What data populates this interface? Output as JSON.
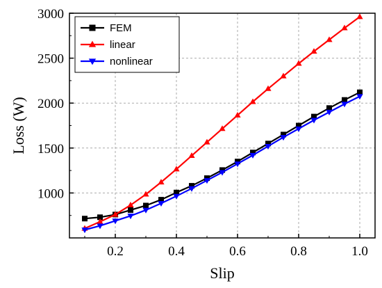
{
  "chart_data": {
    "type": "line",
    "title": "",
    "xlabel": "Slip",
    "ylabel": "Loss (W)",
    "xlim": [
      0.05,
      1.05
    ],
    "ylim": [
      500,
      3000
    ],
    "xticks": [
      0.2,
      0.4,
      0.6,
      0.8,
      1.0
    ],
    "xtick_labels": [
      "0.2",
      "0.4",
      "0.6",
      "0.8",
      "1.0"
    ],
    "yticks": [
      1000,
      1500,
      2000,
      2500,
      3000
    ],
    "ytick_labels": [
      "1000",
      "1500",
      "2000",
      "2500",
      "3000"
    ],
    "grid": true,
    "legend_position": "top-left",
    "x": [
      0.1,
      0.15,
      0.2,
      0.25,
      0.3,
      0.35,
      0.4,
      0.45,
      0.5,
      0.55,
      0.6,
      0.65,
      0.7,
      0.75,
      0.8,
      0.85,
      0.9,
      0.95,
      1.0
    ],
    "series": [
      {
        "name": "FEM",
        "color": "#000000",
        "marker": "square",
        "values": [
          715,
          730,
          760,
          810,
          860,
          925,
          1005,
          1080,
          1165,
          1255,
          1350,
          1450,
          1550,
          1650,
          1750,
          1850,
          1945,
          2035,
          2120
        ]
      },
      {
        "name": "linear",
        "color": "#ff0000",
        "marker": "triangle-up",
        "values": [
          605,
          680,
          760,
          865,
          985,
          1120,
          1265,
          1415,
          1565,
          1715,
          1865,
          2015,
          2160,
          2300,
          2440,
          2575,
          2705,
          2835,
          2960
        ]
      },
      {
        "name": "nonlinear",
        "color": "#0000ff",
        "marker": "triangle-down",
        "values": [
          590,
          635,
          690,
          745,
          810,
          885,
          965,
          1050,
          1140,
          1230,
          1325,
          1420,
          1520,
          1620,
          1715,
          1810,
          1900,
          1990,
          2075
        ]
      }
    ]
  }
}
